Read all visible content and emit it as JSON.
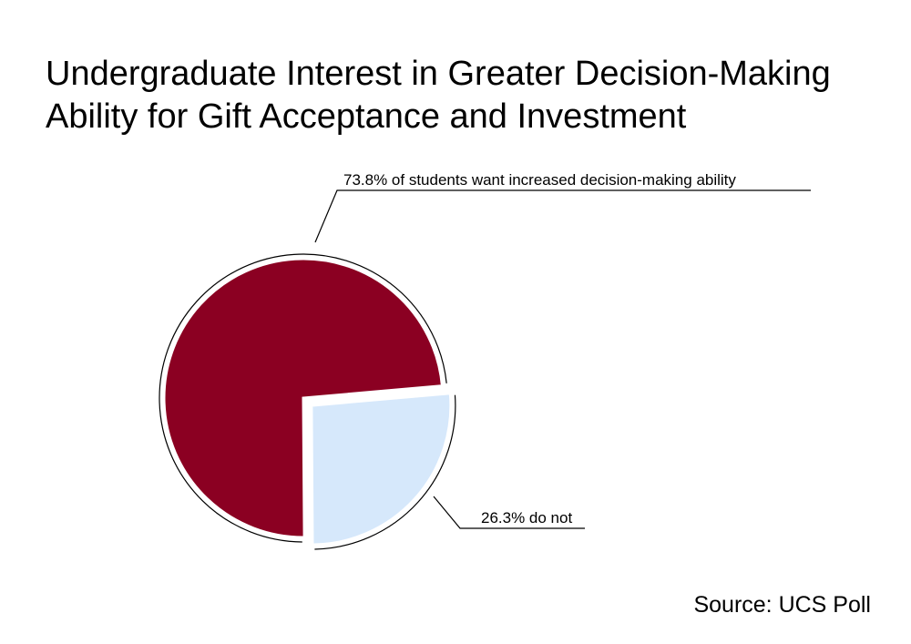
{
  "title_lines": [
    "Undergraduate Interest in Greater Decision-Making",
    "Ability for Gift Acceptance and Investment"
  ],
  "source": "Source: UCS Poll",
  "colors": {
    "want": "#8b0022",
    "do_not": "#d6e8fb",
    "outline": "#000000"
  },
  "chart_data": {
    "type": "pie",
    "categories": [
      "want increased decision-making ability",
      "do not"
    ],
    "values": [
      73.8,
      26.3
    ],
    "colors": [
      "#8b0022",
      "#d6e8fb"
    ],
    "exploded": [
      false,
      true
    ],
    "annotations": [
      "73.8% of students want increased decision-making ability",
      "26.3% do not"
    ],
    "legend": "none"
  }
}
